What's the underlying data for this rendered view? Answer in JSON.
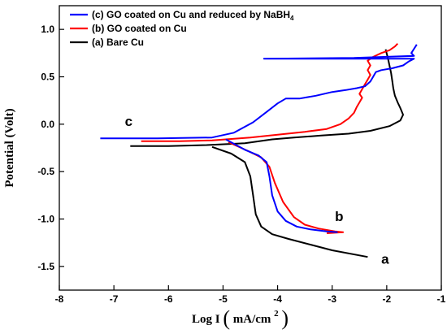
{
  "chart_data": {
    "type": "line",
    "xlabel": "Log I",
    "xlabel_unit": "mA/cm",
    "xlabel_unit_exp": "2",
    "ylabel": "Potential (Volt)",
    "xlim": [
      -8,
      -1
    ],
    "ylim": [
      -1.75,
      1.25
    ],
    "xticks": [
      -8,
      -7,
      -6,
      -5,
      -4,
      -3,
      -2,
      -1
    ],
    "yticks": [
      -1.5,
      -1.0,
      -0.5,
      0.0,
      0.5,
      1.0
    ],
    "legend_position": "top-left",
    "series": [
      {
        "name_parts": [
          "(c) GO coated on Cu and reduced by NaBH",
          "4"
        ],
        "color": "#0000ff",
        "label": "c",
        "label_at": [
          -6.8,
          -0.02
        ],
        "points": [
          [
            -7.25,
            -0.15
          ],
          [
            -6.2,
            -0.15
          ],
          [
            -5.2,
            -0.14
          ],
          [
            -4.8,
            -0.09
          ],
          [
            -4.45,
            0.02
          ],
          [
            -4.2,
            0.13
          ],
          [
            -4.0,
            0.22
          ],
          [
            -3.85,
            0.27
          ],
          [
            -3.6,
            0.27
          ],
          [
            -3.3,
            0.3
          ],
          [
            -3.0,
            0.34
          ],
          [
            -2.75,
            0.36
          ],
          [
            -2.55,
            0.38
          ],
          [
            -2.4,
            0.4
          ],
          [
            -2.3,
            0.45
          ],
          [
            -2.25,
            0.5
          ],
          [
            -2.2,
            0.55
          ],
          [
            -2.1,
            0.57
          ],
          [
            -1.9,
            0.59
          ],
          [
            -1.7,
            0.62
          ],
          [
            -1.6,
            0.66
          ],
          [
            -1.5,
            0.69
          ],
          [
            -4.25,
            0.69
          ],
          [
            -2.6,
            0.7
          ],
          [
            -1.5,
            0.72
          ],
          [
            -1.55,
            0.75
          ],
          [
            -1.45,
            0.84
          ]
        ],
        "branch": [
          [
            -4.95,
            -0.16
          ],
          [
            -4.6,
            -0.27
          ],
          [
            -4.35,
            -0.33
          ],
          [
            -4.2,
            -0.4
          ],
          [
            -4.15,
            -0.55
          ],
          [
            -4.1,
            -0.75
          ],
          [
            -4.0,
            -0.92
          ],
          [
            -3.85,
            -1.02
          ],
          [
            -3.65,
            -1.08
          ],
          [
            -3.4,
            -1.11
          ],
          [
            -3.1,
            -1.13
          ],
          [
            -2.9,
            -1.14
          ]
        ]
      },
      {
        "name_parts": [
          "(b) GO coated on Cu"
        ],
        "color": "#ff0000",
        "label": "b",
        "label_at": [
          -2.95,
          -1.02
        ],
        "points": [
          [
            -6.5,
            -0.18
          ],
          [
            -5.8,
            -0.18
          ],
          [
            -5.2,
            -0.17
          ],
          [
            -4.5,
            -0.14
          ],
          [
            -4.0,
            -0.11
          ],
          [
            -3.5,
            -0.08
          ],
          [
            -3.1,
            -0.05
          ],
          [
            -2.85,
            0.0
          ],
          [
            -2.7,
            0.06
          ],
          [
            -2.6,
            0.12
          ],
          [
            -2.55,
            0.18
          ],
          [
            -2.5,
            0.23
          ],
          [
            -2.45,
            0.28
          ],
          [
            -2.5,
            0.32
          ],
          [
            -2.45,
            0.37
          ],
          [
            -2.4,
            0.42
          ],
          [
            -2.35,
            0.47
          ],
          [
            -2.3,
            0.52
          ],
          [
            -2.35,
            0.57
          ],
          [
            -2.3,
            0.62
          ],
          [
            -2.35,
            0.67
          ],
          [
            -2.25,
            0.71
          ],
          [
            -2.1,
            0.75
          ],
          [
            -1.95,
            0.78
          ],
          [
            -1.85,
            0.82
          ],
          [
            -1.8,
            0.85
          ]
        ],
        "branch": [
          [
            -4.9,
            -0.19
          ],
          [
            -4.55,
            -0.28
          ],
          [
            -4.3,
            -0.35
          ],
          [
            -4.15,
            -0.45
          ],
          [
            -4.05,
            -0.62
          ],
          [
            -3.9,
            -0.82
          ],
          [
            -3.7,
            -0.98
          ],
          [
            -3.5,
            -1.06
          ],
          [
            -3.25,
            -1.1
          ],
          [
            -2.95,
            -1.13
          ],
          [
            -2.8,
            -1.14
          ],
          [
            -3.1,
            -1.15
          ]
        ]
      },
      {
        "name_parts": [
          "(a) Bare Cu"
        ],
        "color": "#000000",
        "label": "a",
        "label_at": [
          -2.1,
          -1.47
        ],
        "points": [
          [
            -6.7,
            -0.23
          ],
          [
            -6.0,
            -0.23
          ],
          [
            -5.3,
            -0.22
          ],
          [
            -4.6,
            -0.2
          ],
          [
            -4.1,
            -0.16
          ],
          [
            -3.7,
            -0.14
          ],
          [
            -3.2,
            -0.12
          ],
          [
            -2.7,
            -0.1
          ],
          [
            -2.3,
            -0.07
          ],
          [
            -1.95,
            -0.02
          ],
          [
            -1.75,
            0.04
          ],
          [
            -1.7,
            0.1
          ],
          [
            -1.75,
            0.17
          ],
          [
            -1.8,
            0.23
          ],
          [
            -1.85,
            0.3
          ],
          [
            -1.88,
            0.38
          ],
          [
            -1.9,
            0.46
          ],
          [
            -1.92,
            0.54
          ],
          [
            -1.95,
            0.62
          ],
          [
            -1.98,
            0.7
          ],
          [
            -2.02,
            0.79
          ]
        ],
        "branch": [
          [
            -5.2,
            -0.24
          ],
          [
            -4.85,
            -0.31
          ],
          [
            -4.6,
            -0.4
          ],
          [
            -4.5,
            -0.55
          ],
          [
            -4.45,
            -0.75
          ],
          [
            -4.4,
            -0.95
          ],
          [
            -4.3,
            -1.08
          ],
          [
            -4.1,
            -1.16
          ],
          [
            -3.8,
            -1.21
          ],
          [
            -3.4,
            -1.27
          ],
          [
            -3.0,
            -1.33
          ],
          [
            -2.35,
            -1.4
          ]
        ]
      }
    ]
  }
}
